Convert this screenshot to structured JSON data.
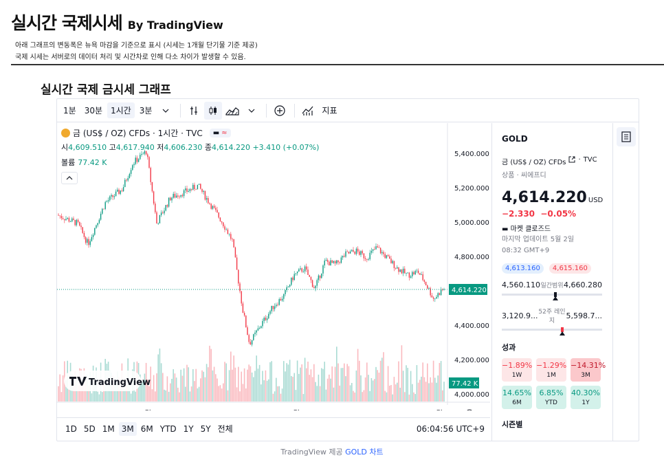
{
  "header": {
    "title": "실시간 국제시세",
    "by": "By TradingView",
    "note1": "아래 그래프의 변동폭은 뉴욕 마감을 기준으로 표시 (시세는 1개월 단기물 기준 제공)",
    "note2": "국제 시세는 서버로의 데이터 처리 및 시간차로 인해 다소 차이가 발생할 수 있음."
  },
  "section_title": "실시간 국제 금시세 그래프",
  "toolbar": {
    "intervals": [
      "1분",
      "30분",
      "1시간",
      "3분"
    ],
    "active_interval": "1시간",
    "indicators_label": "지표"
  },
  "legend": {
    "symbol_title": "금 (US$ / OZ) CFDs · 1시간 · TVC",
    "open_label": "시",
    "open": "4,609.510",
    "high_label": "고",
    "high": "4,617.940",
    "low_label": "저",
    "low": "4,606.230",
    "close_label": "종",
    "close": "4,614.220",
    "change": "+3.410 (+0.07%)",
    "volume_label": "볼륨",
    "volume": "77.42 K"
  },
  "price_axis": {
    "ticks": [
      "5,400.000",
      "5,200.000",
      "5,000.000",
      "4,800.000",
      "4,400.000",
      "4,200.000",
      "4,000.000"
    ],
    "current_price": "4,614.220",
    "current_volume": "77.42 K"
  },
  "time_axis": {
    "labels": [
      "3월",
      "4월",
      "5월"
    ]
  },
  "watermark": "TradingView",
  "bottom_bar": {
    "ranges": [
      "1D",
      "5D",
      "1M",
      "3M",
      "6M",
      "YTD",
      "1Y",
      "5Y",
      "전체"
    ],
    "active_range": "3M",
    "clock": "06:04:56 UTC+9"
  },
  "side": {
    "symbol": "GOLD",
    "description": "금 (US$ / OZ) CFDs",
    "exchange": "TVC",
    "category": "상품 · 씨에프디",
    "price": "4,614.220",
    "currency": "USD",
    "change": "−2.330",
    "change_pct": "−0.05%",
    "market_status": "마켓 클로즈드",
    "update_line1": "마지막 업데이트 5월 2일",
    "update_line2": "08:32 GMT+9",
    "bid": "4,613.160",
    "ask": "4,615.160",
    "day_low": "4,560.110",
    "day_label": "일간범위",
    "day_high": "4,660.280",
    "w52_low": "3,120.9...",
    "w52_label": "52주 레인지",
    "w52_high": "5,598.7...",
    "perf_title": "성과",
    "performance": [
      {
        "pct": "−1.89%",
        "label": "1W",
        "tone": "neg1"
      },
      {
        "pct": "−1.29%",
        "label": "1M",
        "tone": "neg1"
      },
      {
        "pct": "−14.31%",
        "label": "3M",
        "tone": "neg2"
      },
      {
        "pct": "14.65%",
        "label": "6M",
        "tone": "pos"
      },
      {
        "pct": "6.85%",
        "label": "YTD",
        "tone": "pos"
      },
      {
        "pct": "40.30%",
        "label": "1Y",
        "tone": "pos"
      }
    ],
    "seasonal_title": "시즌별"
  },
  "footer": {
    "prefix": "TradingView 제공",
    "link": "GOLD 차트"
  },
  "colors": {
    "up": "#089981",
    "down": "#f23645",
    "accent": "#2962ff"
  }
}
